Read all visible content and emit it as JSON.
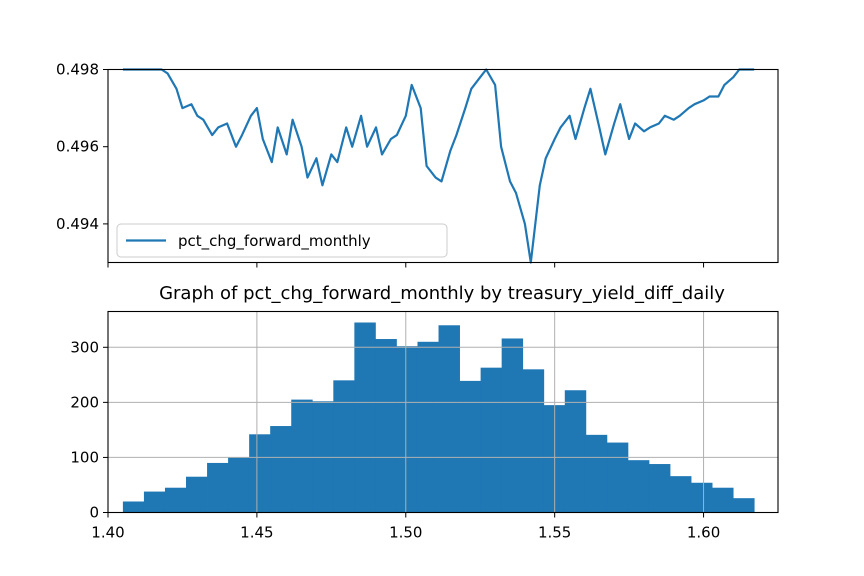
{
  "chart_data": [
    {
      "type": "line",
      "title": "",
      "xlabel": "",
      "ylabel": "",
      "xlim": [
        1.4,
        1.625
      ],
      "ylim": [
        0.493,
        0.498
      ],
      "yticks": [
        "0.494",
        "0.496",
        "0.498"
      ],
      "xticks_shown_without_labels": [
        1.4,
        1.45,
        1.5,
        1.55,
        1.6
      ],
      "grid": false,
      "legend": {
        "position": "lower-left",
        "entries": [
          "pct_chg_forward_monthly"
        ]
      },
      "color": "#1f77b4",
      "series": [
        {
          "name": "pct_chg_forward_monthly",
          "x": [
            1.405,
            1.412,
            1.418,
            1.42,
            1.423,
            1.425,
            1.428,
            1.43,
            1.432,
            1.435,
            1.437,
            1.44,
            1.443,
            1.445,
            1.448,
            1.45,
            1.452,
            1.455,
            1.457,
            1.46,
            1.462,
            1.465,
            1.467,
            1.47,
            1.472,
            1.475,
            1.477,
            1.48,
            1.482,
            1.485,
            1.487,
            1.49,
            1.492,
            1.495,
            1.497,
            1.5,
            1.502,
            1.505,
            1.507,
            1.51,
            1.512,
            1.515,
            1.517,
            1.52,
            1.522,
            1.525,
            1.527,
            1.53,
            1.532,
            1.535,
            1.537,
            1.54,
            1.542,
            1.545,
            1.547,
            1.55,
            1.552,
            1.555,
            1.557,
            1.56,
            1.562,
            1.565,
            1.567,
            1.57,
            1.572,
            1.575,
            1.577,
            1.58,
            1.582,
            1.585,
            1.587,
            1.59,
            1.592,
            1.595,
            1.597,
            1.6,
            1.602,
            1.605,
            1.607,
            1.61,
            1.612,
            1.615,
            1.617
          ],
          "y": [
            0.498,
            0.498,
            0.498,
            0.4979,
            0.4975,
            0.497,
            0.4971,
            0.4968,
            0.4967,
            0.4963,
            0.4965,
            0.4966,
            0.496,
            0.4963,
            0.4968,
            0.497,
            0.4962,
            0.4956,
            0.4965,
            0.4958,
            0.4967,
            0.496,
            0.4952,
            0.4957,
            0.495,
            0.4958,
            0.4956,
            0.4965,
            0.496,
            0.4968,
            0.496,
            0.4965,
            0.4958,
            0.4962,
            0.4963,
            0.4968,
            0.4976,
            0.497,
            0.4955,
            0.4952,
            0.4951,
            0.4959,
            0.4963,
            0.497,
            0.4975,
            0.4978,
            0.498,
            0.4976,
            0.496,
            0.4951,
            0.4948,
            0.494,
            0.493,
            0.495,
            0.4957,
            0.4962,
            0.4965,
            0.4968,
            0.4962,
            0.497,
            0.4975,
            0.4965,
            0.4958,
            0.4966,
            0.4971,
            0.4962,
            0.4966,
            0.4964,
            0.4965,
            0.4966,
            0.4968,
            0.4967,
            0.4968,
            0.497,
            0.4971,
            0.4972,
            0.4973,
            0.4973,
            0.4976,
            0.4978,
            0.498,
            0.498,
            0.498
          ]
        }
      ]
    },
    {
      "type": "bar",
      "title": "Graph of pct_chg_forward_monthly by treasury_yield_diff_daily",
      "xlabel": "",
      "ylabel": "",
      "xlim": [
        1.4,
        1.625
      ],
      "ylim": [
        0,
        365
      ],
      "xticks": [
        "1.40",
        "1.45",
        "1.50",
        "1.55",
        "1.60"
      ],
      "yticks": [
        "0",
        "100",
        "200",
        "300"
      ],
      "grid": true,
      "color": "#1f77b4",
      "bin_start": 1.405,
      "bin_end": 1.617,
      "values": [
        20,
        38,
        45,
        65,
        90,
        100,
        142,
        157,
        205,
        202,
        240,
        345,
        315,
        302,
        310,
        340,
        239,
        263,
        316,
        260,
        195,
        222,
        141,
        127,
        95,
        88,
        66,
        54,
        45,
        26
      ]
    }
  ]
}
